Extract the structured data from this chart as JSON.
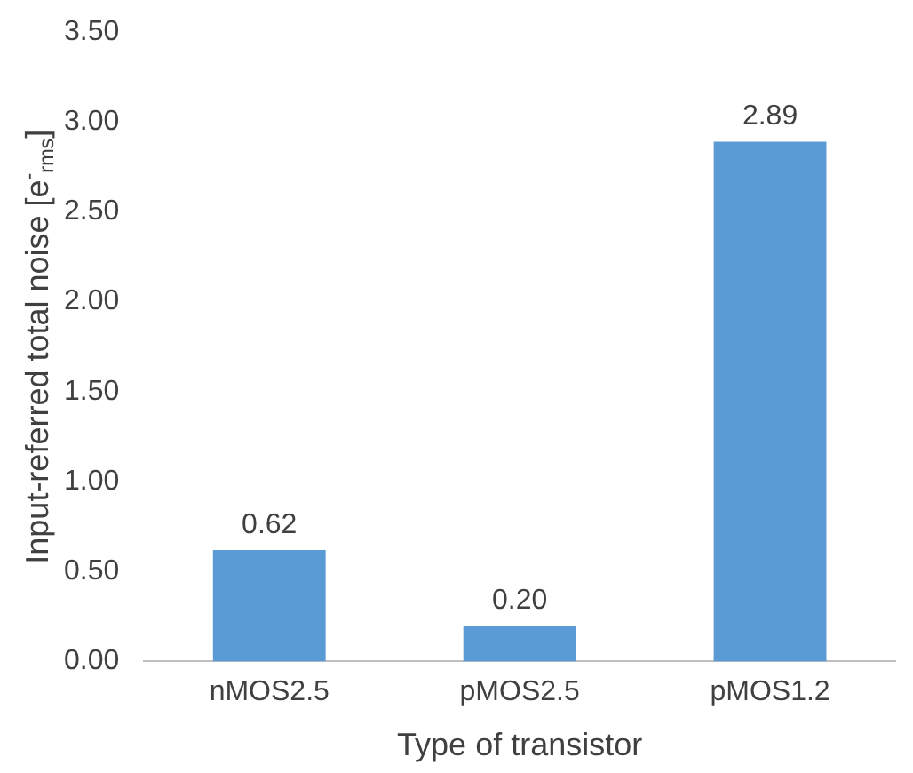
{
  "chart_data": {
    "type": "bar",
    "xlabel": "Type of transistor",
    "ylabel": "Input-referred total noise [e$^{-}$$_{rms}$]",
    "categories": [
      "nMOS2.5",
      "pMOS2.5",
      "pMOS1.2"
    ],
    "series": [
      {
        "color": "#5b9bd5",
        "values": [
          0.62,
          0.2,
          2.89
        ],
        "value_labels": [
          "0.62",
          "0.20",
          "2.89"
        ]
      }
    ],
    "ylim": [
      0,
      3.5
    ],
    "yticks": [
      {
        "value": 0,
        "label": "0.00"
      },
      {
        "value": 0.5,
        "label": "0.50"
      },
      {
        "value": 1,
        "label": "1.00"
      },
      {
        "value": 1.5,
        "label": "1.50"
      },
      {
        "value": 2,
        "label": "2.00"
      },
      {
        "value": 2.5,
        "label": "2.50"
      },
      {
        "value": 3,
        "label": "3.00"
      },
      {
        "value": 3.5,
        "label": "3.50"
      }
    ],
    "grid": false,
    "legend": false
  }
}
